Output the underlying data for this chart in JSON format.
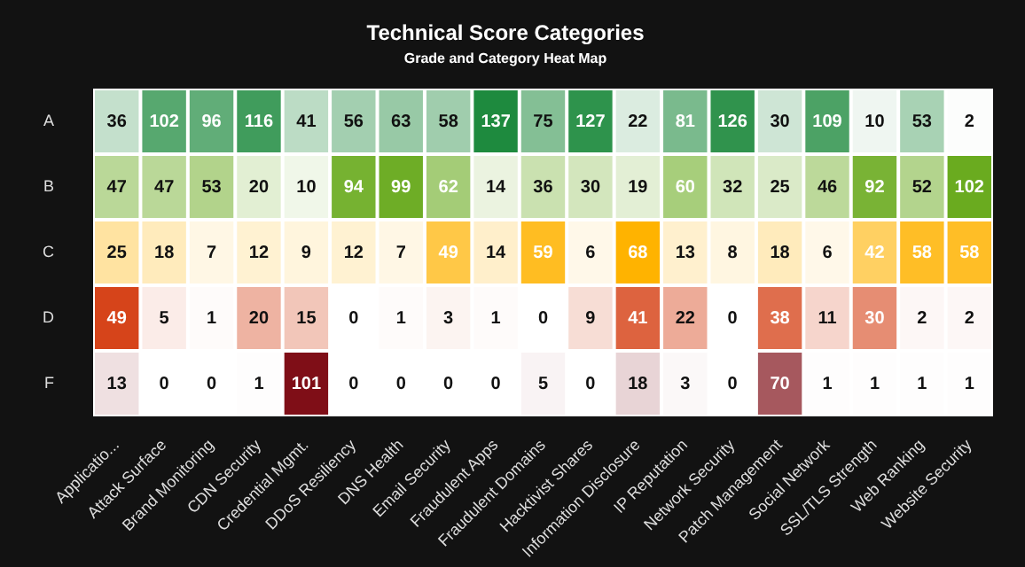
{
  "chart_data": {
    "type": "heatmap",
    "title": "Technical Score Categories",
    "subtitle": "Grade and Category Heat Map",
    "categories": [
      "Applicatio...",
      "Attack Surface",
      "Brand Monitoring",
      "CDN Security",
      "Credential Mgmt.",
      "DDoS Resiliency",
      "DNS Health",
      "Email Security",
      "Fraudulent Apps",
      "Fraudulent Domains",
      "Hacktivist Shares",
      "Information Disclosure",
      "IP Reputation",
      "Network Security",
      "Patch Management",
      "Social Network",
      "SSL/TLS Strength",
      "Web Ranking",
      "Website Security"
    ],
    "y_categories": [
      "A",
      "B",
      "C",
      "D",
      "F"
    ],
    "colors": [
      "#1e8a3e",
      "#6aab1f",
      "#ffb300",
      "#d6441a",
      "#7f0e17"
    ],
    "cells": [
      [
        36,
        102,
        96,
        116,
        41,
        56,
        63,
        58,
        137,
        75,
        127,
        22,
        81,
        126,
        30,
        109,
        10,
        53,
        2
      ],
      [
        47,
        47,
        53,
        20,
        10,
        94,
        99,
        62,
        14,
        36,
        30,
        19,
        60,
        32,
        25,
        46,
        92,
        52,
        102
      ],
      [
        25,
        18,
        7,
        12,
        9,
        12,
        7,
        49,
        14,
        59,
        6,
        68,
        13,
        8,
        18,
        6,
        42,
        58,
        58
      ],
      [
        49,
        5,
        1,
        20,
        15,
        0,
        1,
        3,
        1,
        0,
        9,
        41,
        22,
        0,
        38,
        11,
        30,
        2,
        2
      ],
      [
        13,
        0,
        0,
        1,
        101,
        0,
        0,
        0,
        0,
        5,
        0,
        18,
        3,
        0,
        70,
        1,
        1,
        1,
        1
      ]
    ],
    "data_labels": true
  }
}
